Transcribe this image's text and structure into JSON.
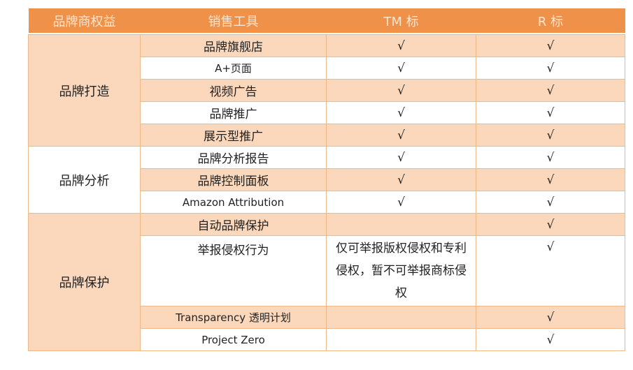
{
  "headers": [
    "品牌商权益",
    "销售工具",
    "TM 标",
    "R 标"
  ],
  "groups": [
    {
      "name": "品牌打造",
      "rows": [
        {
          "tool": "品牌旗舰店",
          "tm": "√",
          "r": "√"
        },
        {
          "tool": "A+页面",
          "tm": "√",
          "r": "√"
        },
        {
          "tool": "视频广告",
          "tm": "√",
          "r": "√"
        },
        {
          "tool": "品牌推广",
          "tm": "√",
          "r": "√"
        },
        {
          "tool": "展示型推广",
          "tm": "√",
          "r": "√"
        }
      ]
    },
    {
      "name": "品牌分析",
      "rows": [
        {
          "tool": "品牌分析报告",
          "tm": "√",
          "r": "√"
        },
        {
          "tool": "品牌控制面板",
          "tm": "√",
          "r": "√"
        },
        {
          "tool": "Amazon Attribution",
          "tm": "√",
          "r": "√"
        }
      ]
    },
    {
      "name": "品牌保护",
      "rows": [
        {
          "tool": "自动品牌保护",
          "tm": "",
          "r": "√"
        },
        {
          "tool": "举报侵权行为",
          "tm": "仅可举报版权侵权和专利侵权，暂不可举报商标侵权",
          "r": "√"
        },
        {
          "tool": "Transparency 透明计划",
          "tm": "",
          "r": "√"
        },
        {
          "tool": "Project Zero",
          "tm": "",
          "r": "√"
        }
      ]
    }
  ],
  "colors": {
    "header": "#ef9149",
    "row_alt": "#fbd8bb",
    "border": "#f0b889"
  }
}
